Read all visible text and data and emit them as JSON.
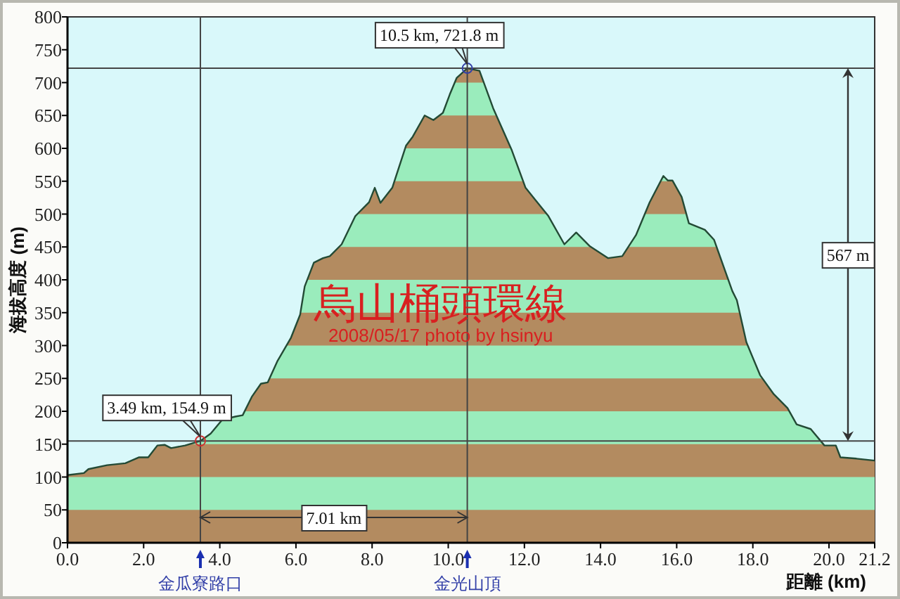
{
  "chart_data": {
    "type": "area",
    "title": "烏山桶頭環線",
    "subtitle": "2008/05/17 photo by hsinyu",
    "xlabel": "距離 (km)",
    "ylabel": "海拔高度 (m)",
    "x": [
      0,
      0.43,
      0.55,
      1.04,
      1.52,
      1.88,
      2.12,
      2.36,
      2.55,
      2.72,
      3.09,
      3.49,
      3.76,
      4.06,
      4.41,
      4.6,
      4.84,
      5.08,
      5.26,
      5.51,
      5.87,
      6.11,
      6.23,
      6.47,
      6.71,
      6.89,
      7.2,
      7.56,
      7.92,
      8.07,
      8.22,
      8.53,
      8.89,
      9.07,
      9.38,
      9.61,
      9.86,
      10.04,
      10.22,
      10.5,
      10.82,
      11.18,
      11.67,
      12.03,
      12.63,
      13.05,
      13.36,
      13.72,
      14.2,
      14.57,
      14.93,
      15.29,
      15.65,
      15.77,
      15.89,
      16.13,
      16.32,
      16.74,
      16.98,
      17.46,
      17.58,
      17.83,
      18.19,
      18.55,
      18.91,
      19.15,
      19.52,
      19.88,
      20.18,
      20.3,
      20.72,
      21.2
    ],
    "series": [
      {
        "color": "#b38b60",
        "values": [
          103,
          106,
          112,
          118,
          121,
          130,
          130,
          148,
          149,
          144,
          148,
          154.9,
          166,
          187,
          192,
          194,
          222,
          242,
          244,
          276,
          312,
          347,
          390,
          426,
          433,
          436,
          454,
          497,
          518,
          540,
          517,
          540,
          604,
          618,
          650,
          643,
          654,
          682,
          707,
          721.8,
          718,
          661,
          597,
          540,
          497,
          454,
          472,
          451,
          433,
          436,
          468,
          518,
          558,
          551,
          551,
          526,
          486,
          476,
          461,
          383,
          369,
          305,
          255,
          226,
          205,
          180,
          173,
          148,
          148,
          130,
          128,
          125
        ]
      }
    ],
    "xlim": [
      0,
      21.2
    ],
    "ylim": [
      0,
      800
    ],
    "xticks": [
      {
        "value": 0,
        "label": "0.0"
      },
      {
        "value": 2,
        "label": "2.0"
      },
      {
        "value": 4,
        "label": "4.0"
      },
      {
        "value": 6,
        "label": "6.0"
      },
      {
        "value": 8,
        "label": "8.0"
      },
      {
        "value": 10,
        "label": "10.0"
      },
      {
        "value": 12,
        "label": "12.0"
      },
      {
        "value": 14,
        "label": "14.0"
      },
      {
        "value": 16,
        "label": "16.0"
      },
      {
        "value": 18,
        "label": "18.0"
      },
      {
        "value": 20,
        "label": "20.0"
      },
      {
        "value": 21.2,
        "label": "21.2"
      }
    ],
    "yticks": [
      0,
      50,
      100,
      150,
      200,
      250,
      300,
      350,
      400,
      450,
      500,
      550,
      600,
      650,
      700,
      750,
      800
    ],
    "ref_lines": [
      {
        "axis": "x",
        "value": 3.49
      },
      {
        "axis": "x",
        "value": 10.5
      },
      {
        "axis": "y",
        "value": 154.9
      },
      {
        "axis": "y",
        "value": 721.8
      }
    ],
    "annotations": [
      {
        "text": "10.5 km, 721.8 m",
        "x": 10.5,
        "y": 721.8
      },
      {
        "text": "3.49 km, 154.9 m",
        "x": 3.49,
        "y": 154.9
      },
      "567 m",
      "7.01 km",
      "金瓜寮路口",
      "金光山頂"
    ],
    "grid": false
  }
}
